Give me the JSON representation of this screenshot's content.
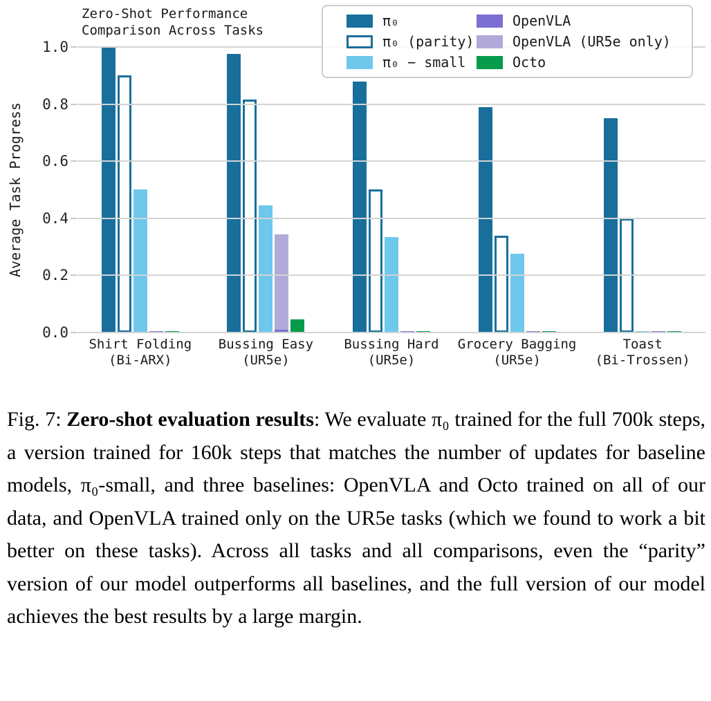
{
  "chart_data": {
    "type": "bar",
    "title": "Zero-Shot Performance\nComparison Across Tasks",
    "ylabel": "Average Task Progress",
    "xlabel": "",
    "ylim": [
      0,
      1.0
    ],
    "yticks": [
      0.0,
      0.2,
      0.4,
      0.6,
      0.8,
      1.0
    ],
    "grid": "horizontal",
    "legend_position": "upper right",
    "categories": [
      "Shirt Folding\n(Bi-ARX)",
      "Bussing Easy\n(UR5e)",
      "Bussing Hard\n(UR5e)",
      "Grocery Bagging\n(UR5e)",
      "Toast\n(Bi-Trossen)"
    ],
    "series": [
      {
        "key": "pi0",
        "name": "π₀",
        "color": "#186F9C",
        "style": "filled",
        "values": [
          1.0,
          0.975,
          0.88,
          0.79,
          0.75
        ]
      },
      {
        "key": "pi0-parity",
        "name": "π₀ (parity)",
        "color": "#186F9C",
        "style": "outline",
        "values": [
          0.9,
          0.815,
          0.5,
          0.34,
          0.4
        ]
      },
      {
        "key": "pi0-small",
        "name": "π₀ − small",
        "color": "#6EC8EC",
        "style": "filled",
        "values": [
          0.5,
          0.445,
          0.335,
          0.275,
          0.005
        ]
      },
      {
        "key": "openvla",
        "name": "OpenVLA",
        "color": "#7B70D2",
        "style": "filled",
        "values": [
          0.005,
          0.01,
          0.005,
          0.005,
          0.005
        ]
      },
      {
        "key": "openvla-ur5e",
        "name": "OpenVLA (UR5e only)",
        "color": "#B1AAD8",
        "style": "filled",
        "values": [
          0,
          0.345,
          0,
          0,
          0
        ]
      },
      {
        "key": "octo",
        "name": "Octo",
        "color": "#049B4B",
        "style": "filled",
        "values": [
          0.005,
          0.045,
          0.005,
          0.005,
          0.005
        ]
      }
    ]
  },
  "caption": {
    "fig_label": "Fig. 7: ",
    "bold": "Zero-shot evaluation results",
    "rest": ": We evaluate π₀ trained for the full 700k steps, a version trained for 160k steps that matches the number of updates for baseline models, π₀-small, and three baselines: OpenVLA and Octo trained on all of our data, and OpenVLA trained only on the UR5e tasks (which we found to work a bit better on these tasks). Across all tasks and all comparisons, even the “parity” version of our model outperforms all baselines, and the full version of our model achieves the best results by a large margin."
  }
}
